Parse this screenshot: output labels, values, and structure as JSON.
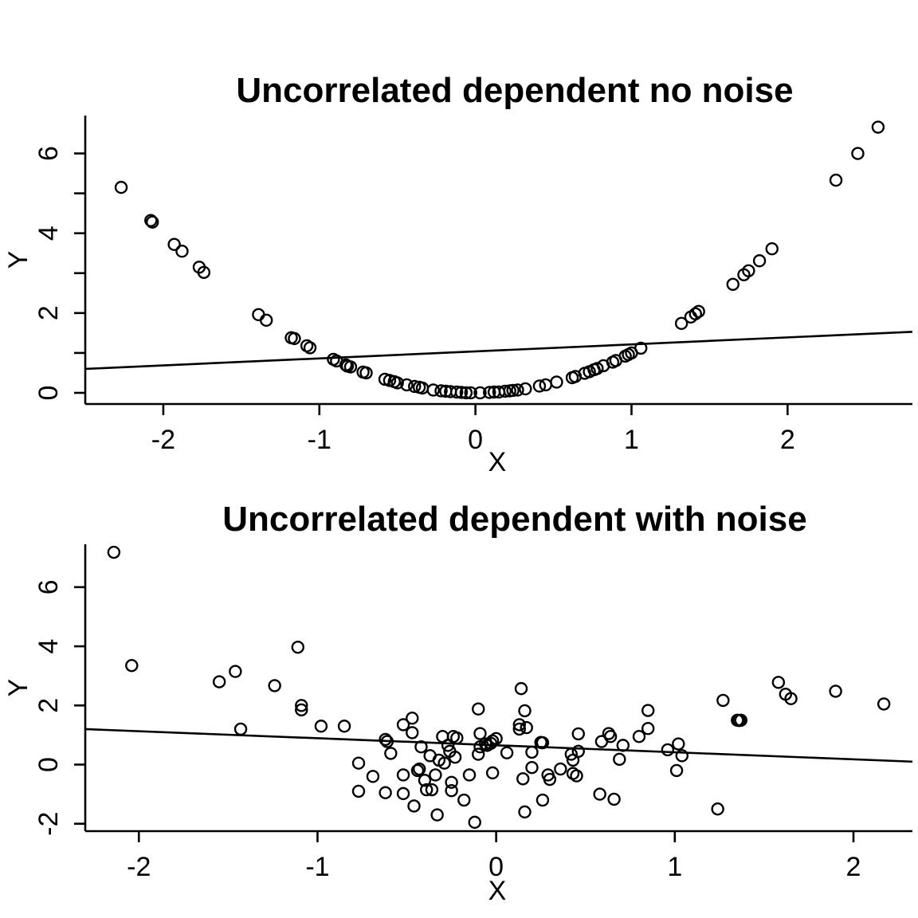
{
  "chart_data": [
    {
      "type": "scatter",
      "title": "Uncorrelated dependent no noise",
      "xlabel": "X",
      "ylabel": "Y",
      "xlim": [
        -2.5,
        2.8
      ],
      "ylim": [
        -0.28,
        6.95
      ],
      "xticks": [
        -2,
        -1,
        0,
        1,
        2
      ],
      "yticks": [
        0,
        1,
        2,
        3,
        4,
        5,
        6
      ],
      "ytick_labels": [
        "0",
        "",
        "2",
        "",
        "4",
        "",
        "6"
      ],
      "fit_line": {
        "x": [
          -2.5,
          2.8
        ],
        "y": [
          0.6,
          1.53
        ]
      },
      "points": [
        [
          -2.27,
          5.15
        ],
        [
          -2.08,
          4.32
        ],
        [
          -2.07,
          4.28
        ],
        [
          -1.93,
          3.72
        ],
        [
          -1.88,
          3.55
        ],
        [
          -1.77,
          3.15
        ],
        [
          -1.74,
          3.02
        ],
        [
          -1.39,
          1.96
        ],
        [
          -1.34,
          1.82
        ],
        [
          -1.18,
          1.38
        ],
        [
          -1.16,
          1.36
        ],
        [
          -1.08,
          1.18
        ],
        [
          -1.06,
          1.13
        ],
        [
          -0.91,
          0.84
        ],
        [
          -0.89,
          0.8
        ],
        [
          -0.83,
          0.7
        ],
        [
          -0.82,
          0.67
        ],
        [
          -0.8,
          0.65
        ],
        [
          -0.72,
          0.52
        ],
        [
          -0.7,
          0.5
        ],
        [
          -0.58,
          0.34
        ],
        [
          -0.55,
          0.31
        ],
        [
          -0.52,
          0.28
        ],
        [
          -0.5,
          0.25
        ],
        [
          -0.44,
          0.2
        ],
        [
          -0.39,
          0.16
        ],
        [
          -0.36,
          0.14
        ],
        [
          -0.34,
          0.12
        ],
        [
          -0.27,
          0.07
        ],
        [
          -0.22,
          0.05
        ],
        [
          -0.19,
          0.04
        ],
        [
          -0.16,
          0.03
        ],
        [
          -0.12,
          0.02
        ],
        [
          -0.09,
          0.01
        ],
        [
          -0.06,
          0.0
        ],
        [
          -0.03,
          0.0
        ],
        [
          0.03,
          0.0
        ],
        [
          0.09,
          0.01
        ],
        [
          0.12,
          0.02
        ],
        [
          0.15,
          0.02
        ],
        [
          0.19,
          0.04
        ],
        [
          0.22,
          0.05
        ],
        [
          0.24,
          0.06
        ],
        [
          0.27,
          0.07
        ],
        [
          0.32,
          0.1
        ],
        [
          0.41,
          0.17
        ],
        [
          0.45,
          0.2
        ],
        [
          0.52,
          0.27
        ],
        [
          0.62,
          0.38
        ],
        [
          0.64,
          0.41
        ],
        [
          0.7,
          0.49
        ],
        [
          0.73,
          0.53
        ],
        [
          0.76,
          0.58
        ],
        [
          0.78,
          0.61
        ],
        [
          0.82,
          0.68
        ],
        [
          0.88,
          0.77
        ],
        [
          0.9,
          0.81
        ],
        [
          0.96,
          0.92
        ],
        [
          0.98,
          0.96
        ],
        [
          1.0,
          1.0
        ],
        [
          1.06,
          1.12
        ],
        [
          1.32,
          1.74
        ],
        [
          1.38,
          1.9
        ],
        [
          1.41,
          1.98
        ],
        [
          1.43,
          2.04
        ],
        [
          1.65,
          2.72
        ],
        [
          1.72,
          2.96
        ],
        [
          1.75,
          3.06
        ],
        [
          1.82,
          3.31
        ],
        [
          1.9,
          3.61
        ],
        [
          2.31,
          5.33
        ],
        [
          2.45,
          6.0
        ],
        [
          2.58,
          6.66
        ]
      ]
    },
    {
      "type": "scatter",
      "title": "Uncorrelated dependent with noise",
      "xlabel": "X",
      "ylabel": "Y",
      "xlim": [
        -2.3,
        2.33
      ],
      "ylim": [
        -2.25,
        7.45
      ],
      "xticks": [
        -2,
        -1,
        0,
        1,
        2
      ],
      "yticks": [
        -2,
        0,
        2,
        4,
        6
      ],
      "fit_line": {
        "x": [
          -2.3,
          2.33
        ],
        "y": [
          1.2,
          0.1
        ]
      },
      "points": [
        [
          -2.14,
          7.18
        ],
        [
          -2.04,
          3.35
        ],
        [
          -1.55,
          2.8
        ],
        [
          -1.46,
          3.15
        ],
        [
          -1.43,
          1.2
        ],
        [
          -1.24,
          2.67
        ],
        [
          -1.11,
          3.97
        ],
        [
          -1.09,
          2.0
        ],
        [
          -1.09,
          1.85
        ],
        [
          -0.98,
          1.3
        ],
        [
          -0.85,
          1.3
        ],
        [
          -0.77,
          0.05
        ],
        [
          -0.77,
          -0.9
        ],
        [
          -0.69,
          -0.4
        ],
        [
          -0.62,
          0.85
        ],
        [
          -0.62,
          -0.95
        ],
        [
          -0.61,
          0.78
        ],
        [
          -0.59,
          0.38
        ],
        [
          -0.52,
          1.35
        ],
        [
          -0.52,
          -0.35
        ],
        [
          -0.52,
          -0.98
        ],
        [
          -0.47,
          1.57
        ],
        [
          -0.47,
          1.08
        ],
        [
          -0.46,
          -1.4
        ],
        [
          -0.44,
          -0.2
        ],
        [
          -0.43,
          -0.15
        ],
        [
          -0.42,
          0.6
        ],
        [
          -0.4,
          -0.53
        ],
        [
          -0.39,
          -0.85
        ],
        [
          -0.37,
          0.3
        ],
        [
          -0.36,
          -0.85
        ],
        [
          -0.34,
          -0.35
        ],
        [
          -0.33,
          -1.7
        ],
        [
          -0.32,
          0.15
        ],
        [
          -0.3,
          0.95
        ],
        [
          -0.29,
          0.05
        ],
        [
          -0.27,
          0.65
        ],
        [
          -0.26,
          0.45
        ],
        [
          -0.25,
          -0.88
        ],
        [
          -0.25,
          -0.6
        ],
        [
          -0.24,
          0.95
        ],
        [
          -0.23,
          0.25
        ],
        [
          -0.22,
          0.9
        ],
        [
          -0.18,
          -1.2
        ],
        [
          -0.15,
          -0.35
        ],
        [
          -0.12,
          -1.95
        ],
        [
          -0.1,
          1.88
        ],
        [
          -0.1,
          0.35
        ],
        [
          -0.09,
          0.6
        ],
        [
          -0.09,
          1.05
        ],
        [
          -0.06,
          0.7
        ],
        [
          -0.05,
          0.65
        ],
        [
          -0.03,
          0.72
        ],
        [
          -0.02,
          0.8
        ],
        [
          -0.02,
          -0.28
        ],
        [
          0.0,
          0.88
        ],
        [
          0.06,
          0.4
        ],
        [
          0.13,
          1.35
        ],
        [
          0.13,
          1.2
        ],
        [
          0.14,
          2.57
        ],
        [
          0.15,
          -0.48
        ],
        [
          0.16,
          1.82
        ],
        [
          0.16,
          -1.6
        ],
        [
          0.17,
          1.25
        ],
        [
          0.2,
          0.42
        ],
        [
          0.2,
          -0.1
        ],
        [
          0.25,
          0.75
        ],
        [
          0.26,
          0.74
        ],
        [
          0.26,
          -1.2
        ],
        [
          0.29,
          -0.35
        ],
        [
          0.3,
          -0.5
        ],
        [
          0.36,
          -0.15
        ],
        [
          0.42,
          0.35
        ],
        [
          0.43,
          0.15
        ],
        [
          0.43,
          -0.3
        ],
        [
          0.45,
          -0.38
        ],
        [
          0.46,
          1.04
        ],
        [
          0.46,
          0.45
        ],
        [
          0.58,
          -1.0
        ],
        [
          0.59,
          0.78
        ],
        [
          0.63,
          1.05
        ],
        [
          0.64,
          0.95
        ],
        [
          0.66,
          -1.17
        ],
        [
          0.69,
          0.18
        ],
        [
          0.71,
          0.65
        ],
        [
          0.8,
          0.95
        ],
        [
          0.85,
          1.83
        ],
        [
          0.85,
          1.22
        ],
        [
          0.96,
          0.5
        ],
        [
          1.01,
          -0.2
        ],
        [
          1.02,
          0.7
        ],
        [
          1.04,
          0.3
        ],
        [
          1.24,
          -1.5
        ],
        [
          1.27,
          2.17
        ],
        [
          1.35,
          1.5
        ],
        [
          1.36,
          1.49
        ],
        [
          1.37,
          1.5
        ],
        [
          1.58,
          2.78
        ],
        [
          1.62,
          2.38
        ],
        [
          1.65,
          2.23
        ],
        [
          1.9,
          2.48
        ],
        [
          2.17,
          2.05
        ]
      ]
    }
  ]
}
